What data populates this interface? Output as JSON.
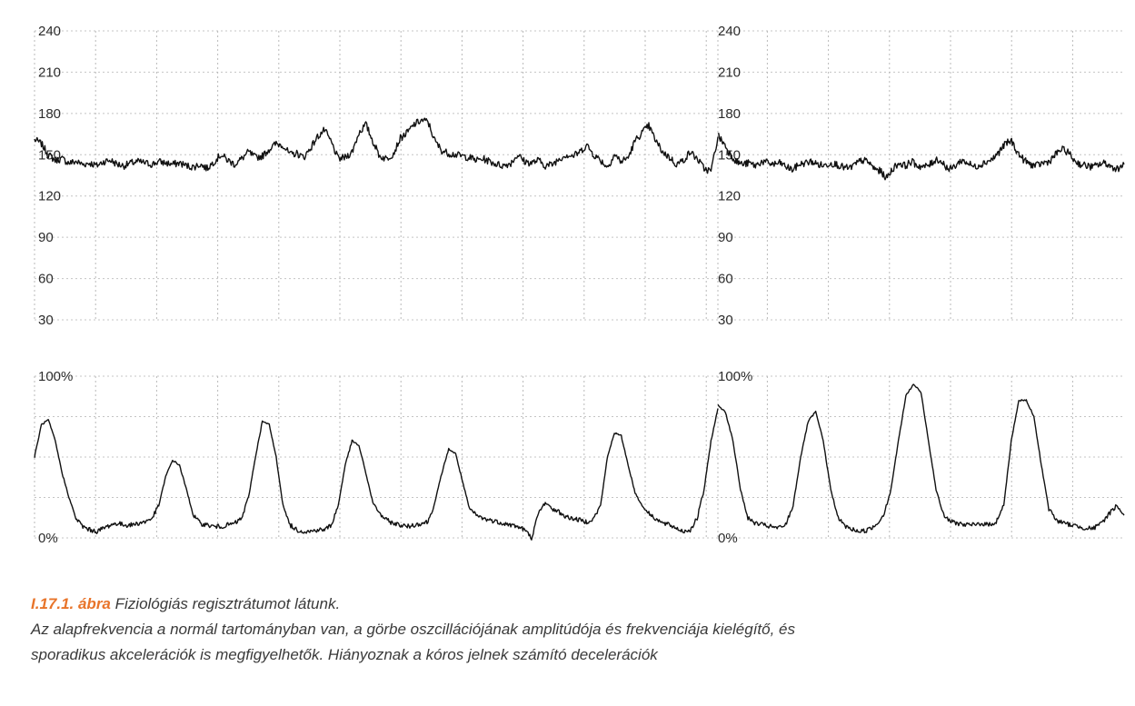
{
  "chart_data": [
    {
      "type": "line",
      "panel": "fetal-heart-rate",
      "segments": 2,
      "y_ticks": [
        "240",
        "210",
        "180",
        "150",
        "120",
        "90",
        "60",
        "30"
      ],
      "ylim": [
        30,
        240
      ],
      "grid": true,
      "baseline": 145,
      "series": [
        {
          "values": [
            161,
            158,
            150,
            146,
            147,
            144,
            145,
            143,
            144,
            142,
            145,
            146,
            143,
            142,
            144,
            145,
            144,
            143,
            145,
            144,
            143,
            144,
            142,
            141,
            143,
            140,
            145,
            150,
            146,
            143,
            147,
            152,
            148,
            149,
            154,
            158,
            157,
            150,
            151,
            148,
            155,
            163,
            168,
            159,
            147,
            148,
            152,
            166,
            172,
            160,
            149,
            147,
            151,
            162,
            166,
            172,
            175,
            174,
            160,
            153,
            151,
            150,
            149,
            148,
            146,
            147,
            145,
            143,
            142,
            144,
            150,
            145,
            144,
            146,
            142,
            143,
            147,
            150,
            149,
            152,
            157,
            150,
            146,
            141,
            150,
            145,
            148,
            160,
            166,
            171,
            160,
            152,
            148,
            143,
            146,
            152,
            147,
            140,
            138,
            163
          ],
          "x_range": [
            0,
            100
          ]
        },
        {
          "values": [
            164,
            158,
            150,
            145,
            143,
            144,
            142,
            145,
            144,
            143,
            144,
            141,
            139,
            143,
            144,
            145,
            143,
            142,
            144,
            143,
            141,
            140,
            143,
            146,
            145,
            140,
            138,
            133,
            140,
            144,
            142,
            145,
            142,
            141,
            143,
            147,
            144,
            139,
            142,
            146,
            144,
            141,
            143,
            145,
            147,
            152,
            158,
            160,
            151,
            146,
            143,
            142,
            144,
            145,
            150,
            154,
            152,
            146,
            143,
            142,
            141,
            143,
            144,
            141,
            140,
            143
          ],
          "x_range": [
            0,
            66
          ]
        }
      ]
    },
    {
      "type": "line",
      "panel": "uterine-contractions",
      "segments": 2,
      "y_ticks": [
        "100%",
        "0%"
      ],
      "ylim": [
        0,
        100
      ],
      "grid": true,
      "series": [
        {
          "values": [
            50,
            70,
            73,
            60,
            40,
            25,
            12,
            7,
            5,
            4,
            6,
            8,
            9,
            8,
            8,
            9,
            10,
            12,
            20,
            38,
            48,
            45,
            30,
            14,
            9,
            8,
            7,
            7,
            8,
            9,
            12,
            25,
            50,
            72,
            70,
            50,
            20,
            8,
            5,
            4,
            4,
            5,
            5,
            8,
            20,
            45,
            60,
            57,
            40,
            22,
            15,
            11,
            9,
            8,
            7,
            8,
            9,
            10,
            22,
            40,
            55,
            52,
            35,
            18,
            14,
            12,
            11,
            10,
            9,
            8,
            7,
            5,
            0,
            15,
            22,
            18,
            16,
            13,
            12,
            11,
            10,
            12,
            20,
            50,
            65,
            63,
            45,
            28,
            20,
            15,
            12,
            9,
            8,
            6,
            4,
            5,
            12,
            30,
            60,
            80
          ],
          "x_range": [
            0,
            100
          ]
        },
        {
          "values": [
            82,
            78,
            60,
            30,
            12,
            9,
            8,
            7,
            6,
            8,
            20,
            50,
            72,
            78,
            60,
            30,
            12,
            7,
            5,
            4,
            5,
            8,
            14,
            30,
            60,
            88,
            95,
            90,
            60,
            30,
            14,
            10,
            9,
            8,
            8,
            9,
            8,
            10,
            20,
            60,
            85,
            85,
            75,
            45,
            18,
            11,
            9,
            8,
            7,
            6,
            6,
            9,
            15,
            20,
            14
          ],
          "x_range": [
            0,
            55
          ]
        }
      ]
    }
  ],
  "caption": {
    "label": "I.17.1. ábra",
    "title": "Fiziológiás regisztrátumot látunk.",
    "text_line1": "Az alapfrekvencia a normál tartományban van, a görbe oszcillációjának amplitúdója és frekvenciája kielégítő, és",
    "text_line2": "sporadikus akcelerációk is megfigyelhetők. Hiányoznak a kóros jelnek számító decelerációk"
  },
  "colors": {
    "trace": "#111111",
    "grid": "#b9b9b9",
    "caption_label": "#e8742a",
    "caption_text": "#3a3a3a"
  }
}
